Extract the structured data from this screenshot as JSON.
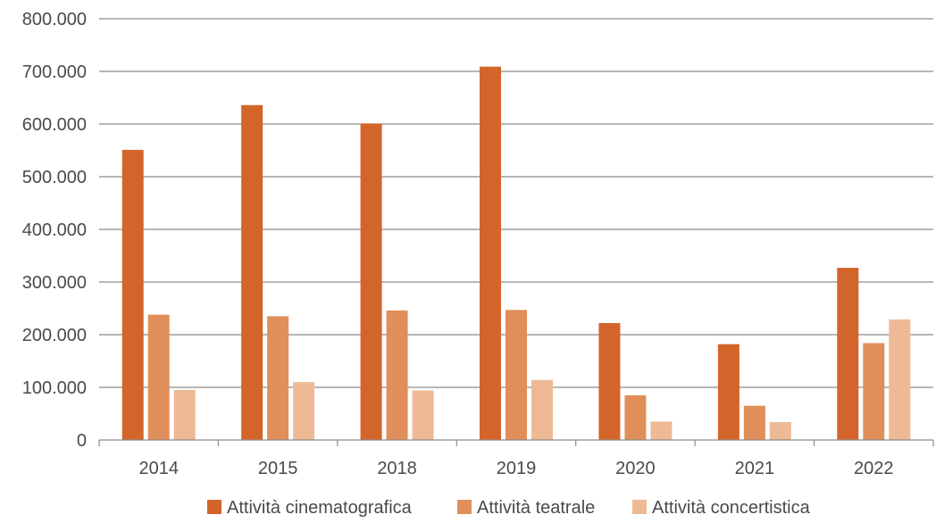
{
  "chart_data": {
    "type": "bar",
    "categories": [
      "2014",
      "2015",
      "2018",
      "2019",
      "2020",
      "2021",
      "2022"
    ],
    "series": [
      {
        "name": "Attività cinematografica",
        "color": "#d4652a",
        "values": [
          551000,
          636000,
          601000,
          709000,
          222000,
          182000,
          327000
        ]
      },
      {
        "name": "Attività teatrale",
        "color": "#e08f5b",
        "values": [
          238000,
          235000,
          246000,
          247000,
          85000,
          65000,
          184000
        ]
      },
      {
        "name": "Attività concertistica",
        "color": "#edba95",
        "values": [
          95000,
          110000,
          94000,
          114000,
          35000,
          34000,
          229000
        ]
      }
    ],
    "y_ticks": [
      "0",
      "100.000",
      "200.000",
      "300.000",
      "400.000",
      "500.000",
      "600.000",
      "700.000",
      "800.000"
    ],
    "ylim": [
      0,
      800000
    ],
    "grid": true,
    "legend_position": "bottom"
  }
}
